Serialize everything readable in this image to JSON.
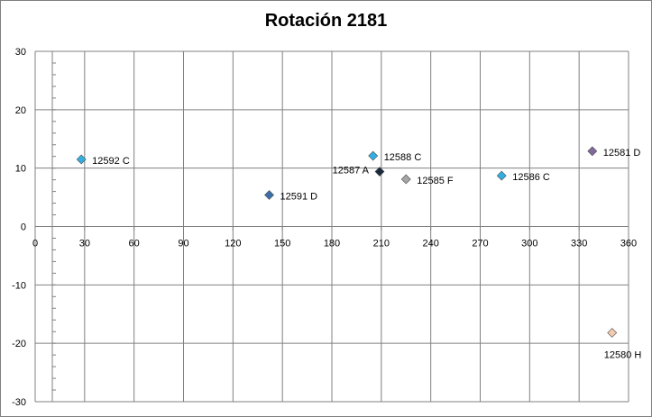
{
  "chart_data": {
    "type": "scatter",
    "title": "Rotación 2181",
    "xlabel": "",
    "ylabel": "",
    "xlim": [
      0,
      360
    ],
    "ylim": [
      -30,
      30
    ],
    "x_ticks": [
      0,
      30,
      60,
      90,
      120,
      150,
      180,
      210,
      240,
      270,
      300,
      330,
      360
    ],
    "y_ticks": [
      -30,
      -20,
      -10,
      0,
      10,
      20,
      30
    ],
    "grid": true,
    "legend": "none",
    "points": [
      {
        "label": "12592 C",
        "x": 28,
        "y": 11.5,
        "color": "#33aee0"
      },
      {
        "label": "12591 D",
        "x": 142,
        "y": 5.4,
        "color": "#3d6ea8"
      },
      {
        "label": "12588 C",
        "x": 205,
        "y": 12.1,
        "color": "#33aee0"
      },
      {
        "label": "12587 A",
        "x": 209,
        "y": 9.4,
        "color": "#1a2a3a"
      },
      {
        "label": "12585 F",
        "x": 225,
        "y": 8.1,
        "color": "#a6a6a6"
      },
      {
        "label": "12586 C",
        "x": 283,
        "y": 8.7,
        "color": "#33aee0"
      },
      {
        "label": "12581 D",
        "x": 338,
        "y": 12.9,
        "color": "#7f6a9a"
      },
      {
        "label": "12580 H",
        "x": 350,
        "y": -18.2,
        "color": "#f5cbb0"
      }
    ]
  }
}
